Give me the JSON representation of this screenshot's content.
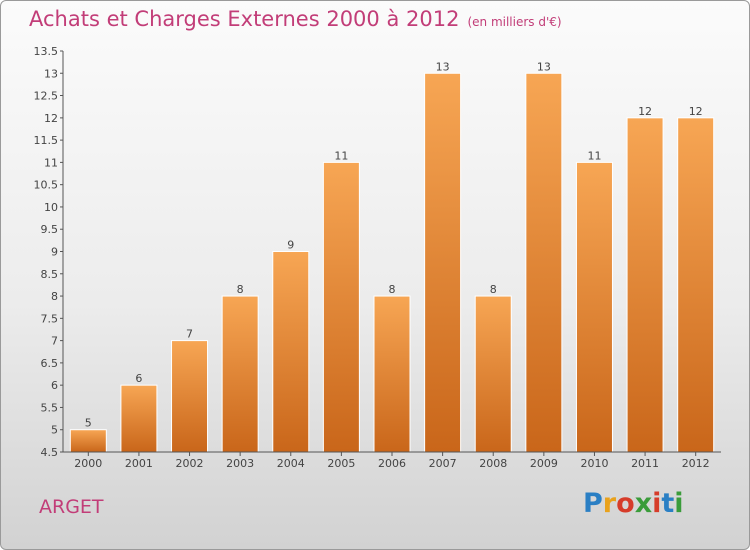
{
  "header": {
    "title": "Achats et Charges Externes 2000 à 2012",
    "subtitle": "(en milliers d'€)"
  },
  "footer": {
    "commune": "ARGET",
    "logo_letters": [
      "P",
      "r",
      "o",
      "x",
      "i",
      "t",
      "i"
    ],
    "logo_colors": [
      "#2a7fc4",
      "#e9a21c",
      "#d63c2a",
      "#3a9c3a",
      "#d63c2a",
      "#2a7fc4",
      "#3a9c3a"
    ]
  },
  "colors": {
    "bar_light": "#f7a654",
    "bar_dark": "#c9661a",
    "bar_edge": "#ffffff",
    "axis": "#555555",
    "grid": "#cfcfcf"
  },
  "chart_data": {
    "type": "bar",
    "title": "Achats et Charges Externes 2000 à 2012",
    "subtitle": "(en milliers d'€)",
    "xlabel": "",
    "ylabel": "",
    "categories": [
      "2000",
      "2001",
      "2002",
      "2003",
      "2004",
      "2005",
      "2006",
      "2007",
      "2008",
      "2009",
      "2010",
      "2011",
      "2012"
    ],
    "values": [
      5,
      6,
      7,
      8,
      9,
      11,
      8,
      13,
      8,
      13,
      11,
      12,
      12
    ],
    "data_labels": [
      "5",
      "6",
      "7",
      "8",
      "9",
      "11",
      "8",
      "13",
      "8",
      "13",
      "11",
      "12",
      "12"
    ],
    "ylim": [
      4.5,
      13.5
    ],
    "yticks": [
      "4.5",
      "5",
      "5.5",
      "6",
      "6.5",
      "7",
      "7.5",
      "8",
      "8.5",
      "9",
      "9.5",
      "10",
      "10.5",
      "11",
      "11.5",
      "12",
      "12.5",
      "13",
      "13.5"
    ],
    "grid": false,
    "legend": "none"
  }
}
